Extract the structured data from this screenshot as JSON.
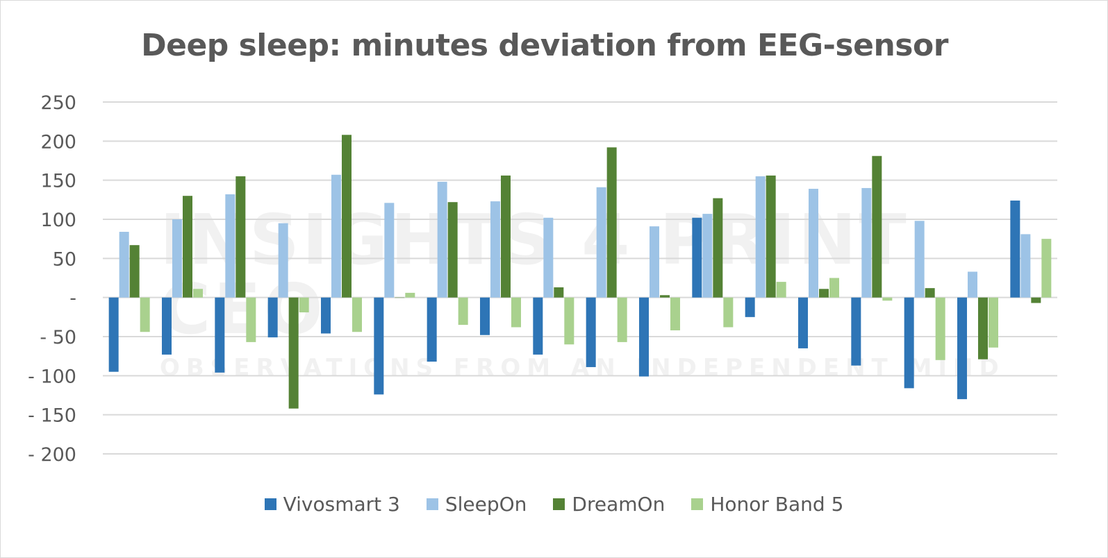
{
  "chart_data": {
    "type": "bar",
    "title": "Deep sleep: minutes deviation from EEG-sensor",
    "ylim": [
      -200,
      250
    ],
    "yticks": [
      250,
      200,
      150,
      100,
      50,
      0,
      -50,
      -100,
      -150,
      -200
    ],
    "ytick_labels": [
      "250",
      "200",
      "150",
      "100",
      "50",
      "-",
      "- 50",
      "- 100",
      "- 150",
      "- 200"
    ],
    "grid": true,
    "legend_position": "bottom",
    "series": [
      {
        "name": "Vivosmart 3",
        "color": "#2e75b6",
        "values": [
          -95,
          -73,
          -96,
          -51,
          -46,
          -124,
          -82,
          -48,
          -73,
          -89,
          -101,
          102,
          -25,
          -65,
          -87,
          -116,
          -130,
          124
        ]
      },
      {
        "name": "SleepOn",
        "color": "#9dc3e6",
        "values": [
          84,
          100,
          132,
          95,
          157,
          121,
          148,
          123,
          102,
          141,
          91,
          107,
          155,
          139,
          140,
          98,
          33,
          81
        ]
      },
      {
        "name": "DreamOn",
        "color": "#548235",
        "values": [
          67,
          130,
          155,
          -142,
          208,
          0,
          122,
          156,
          13,
          192,
          3,
          127,
          156,
          11,
          181,
          12,
          -79,
          -7
        ]
      },
      {
        "name": "Honor Band 5",
        "color": "#a9d18e",
        "values": [
          -44,
          11,
          -57,
          -19,
          -44,
          6,
          -35,
          -38,
          -60,
          -57,
          -42,
          -38,
          20,
          25,
          -4,
          -80,
          -64,
          75
        ]
      }
    ]
  },
  "watermark": {
    "main": "INSIGHTS 4 PRINT CEO",
    "sub": "OBSERVATIONS FROM AN INDEPENDENT MIND"
  }
}
